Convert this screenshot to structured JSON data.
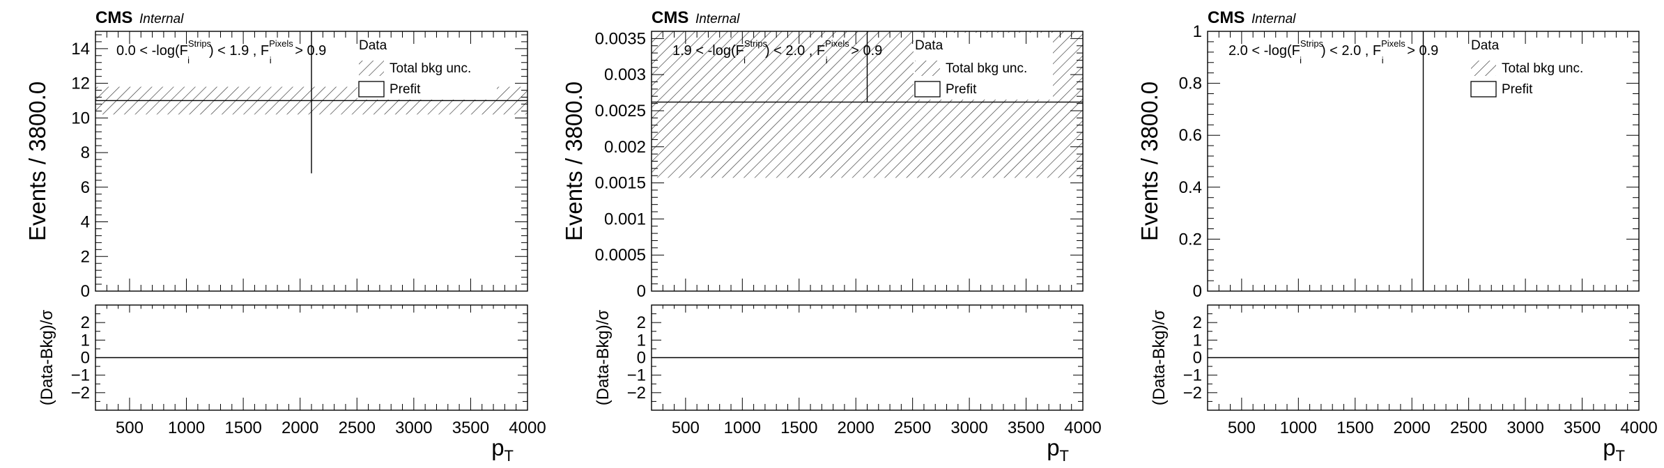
{
  "figure": {
    "brand": "CMS",
    "status": "Internal"
  },
  "chart_data": [
    {
      "type": "bar",
      "label": {
        "a": "0.0 < -log(F",
        "sup1": "Strips",
        "sub1": "i",
        "b": ") < 1.9 , F",
        "sup2": "Pixels",
        "sub2": "i",
        "c": " > 0.9"
      },
      "legend": [
        "Data",
        "Total bkg unc.",
        "Prefit"
      ],
      "ylabel": "Events / 3800.0",
      "ratio_ylabel": "(Data-Bkg)/σ",
      "xlabel": "p",
      "xlabel_sub": "T",
      "xlim": [
        200,
        4000
      ],
      "ylim": [
        0,
        15
      ],
      "yticks": [
        0,
        2,
        4,
        6,
        8,
        10,
        12,
        14
      ],
      "yticklabels": [
        "0",
        "2",
        "4",
        "6",
        "8",
        "10",
        "12",
        "14"
      ],
      "xticks": [
        500,
        1000,
        1500,
        2000,
        2500,
        3000,
        3500,
        4000
      ],
      "xticklabels": [
        "500",
        "1000",
        "1500",
        "2000",
        "2500",
        "3000",
        "3500",
        "4000"
      ],
      "ratio_ylim": [
        -3,
        3
      ],
      "ratio_yticks": [
        -2,
        -1,
        0,
        1,
        2
      ],
      "ratio_yticklabels": [
        "−2",
        "−1",
        "0",
        "1",
        "2"
      ],
      "bkg": {
        "x": [
          200,
          4000
        ],
        "value": 11.0,
        "unc_low": 10.2,
        "unc_high": 11.8
      },
      "data_point": {
        "x": 2100,
        "y_low": 6.8,
        "y_high": 15.0
      }
    },
    {
      "type": "bar",
      "label": {
        "a": "1.9 < -log(F",
        "sup1": "Strips",
        "sub1": "i",
        "b": ") < 2.0 , F",
        "sup2": "Pixels",
        "sub2": "i",
        "c": " > 0.9"
      },
      "legend": [
        "Data",
        "Total bkg unc.",
        "Prefit"
      ],
      "ylabel": "Events / 3800.0",
      "ratio_ylabel": "(Data-Bkg)/σ",
      "xlabel": "p",
      "xlabel_sub": "T",
      "xlim": [
        200,
        4000
      ],
      "ylim": [
        0,
        0.0036
      ],
      "yticks": [
        0,
        0.0005,
        0.001,
        0.0015,
        0.002,
        0.0025,
        0.003,
        0.0035
      ],
      "yticklabels": [
        "0",
        "0.0005",
        "0.001",
        "0.0015",
        "0.002",
        "0.0025",
        "0.003",
        "0.0035"
      ],
      "xticks": [
        500,
        1000,
        1500,
        2000,
        2500,
        3000,
        3500,
        4000
      ],
      "xticklabels": [
        "500",
        "1000",
        "1500",
        "2000",
        "2500",
        "3000",
        "3500",
        "4000"
      ],
      "ratio_ylim": [
        -3,
        3
      ],
      "ratio_yticks": [
        -2,
        -1,
        0,
        1,
        2
      ],
      "ratio_yticklabels": [
        "−2",
        "−1",
        "0",
        "1",
        "2"
      ],
      "bkg": {
        "x": [
          200,
          4000
        ],
        "value": 0.00262,
        "unc_low": 0.00157,
        "unc_high": 0.0036
      },
      "data_point": {
        "x": 2100,
        "y_low": 0.00262,
        "y_high": 0.0036
      }
    },
    {
      "type": "bar",
      "label": {
        "a": "2.0 < -log(F",
        "sup1": "Strips",
        "sub1": "i",
        "b": ") < 2.0 , F",
        "sup2": "Pixels",
        "sub2": "i",
        "c": " > 0.9"
      },
      "legend": [
        "Data",
        "Total bkg unc.",
        "Prefit"
      ],
      "ylabel": "Events / 3800.0",
      "ratio_ylabel": "(Data-Bkg)/σ",
      "xlabel": "p",
      "xlabel_sub": "T",
      "xlim": [
        200,
        4000
      ],
      "ylim": [
        0,
        1
      ],
      "yticks": [
        0,
        0.2,
        0.4,
        0.6,
        0.8,
        1
      ],
      "yticklabels": [
        "0",
        "0.2",
        "0.4",
        "0.6",
        "0.8",
        "1"
      ],
      "xticks": [
        500,
        1000,
        1500,
        2000,
        2500,
        3000,
        3500,
        4000
      ],
      "xticklabels": [
        "500",
        "1000",
        "1500",
        "2000",
        "2500",
        "3000",
        "3500",
        "4000"
      ],
      "ratio_ylim": [
        -3,
        3
      ],
      "ratio_yticks": [
        -2,
        -1,
        0,
        1,
        2
      ],
      "ratio_yticklabels": [
        "−2",
        "−1",
        "0",
        "1",
        "2"
      ],
      "bkg": null,
      "data_point": {
        "x": 2100,
        "y_low": 0,
        "y_high": 1
      }
    }
  ]
}
